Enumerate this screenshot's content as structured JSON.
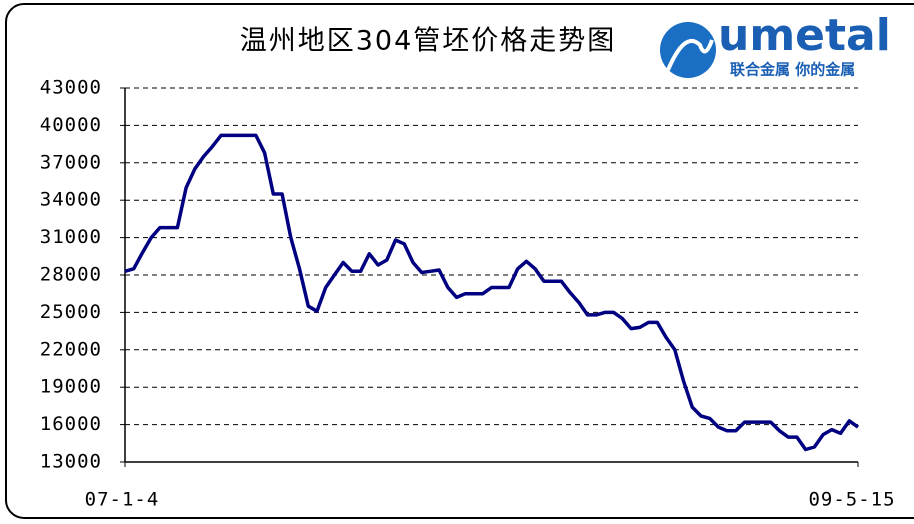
{
  "chart_data": {
    "type": "line",
    "title": "温州地区304管坯价格走势图",
    "logo": {
      "name": "umetal",
      "slogan": "联合金属 你的金属"
    },
    "categories": [
      "07-1-4",
      null,
      null,
      null,
      null,
      null,
      null,
      null,
      null,
      null,
      null,
      null,
      null,
      null,
      null,
      null,
      null,
      null,
      null,
      null,
      null,
      null,
      null,
      null,
      null,
      null,
      null,
      null,
      null,
      null,
      null,
      null,
      null,
      null,
      null,
      null,
      null,
      null,
      null,
      null,
      null,
      null,
      null,
      null,
      null,
      null,
      null,
      null,
      null,
      null,
      null,
      null,
      null,
      null,
      null,
      null,
      null,
      null,
      null,
      null,
      null,
      null,
      null,
      null,
      null,
      null,
      null,
      null,
      null,
      null,
      null,
      null,
      null,
      null,
      null,
      null,
      null,
      null,
      null,
      null,
      null,
      null,
      null,
      null,
      "09-5-15"
    ],
    "values": [
      28300,
      28500,
      29800,
      31000,
      31800,
      31800,
      31800,
      35000,
      36500,
      37500,
      38300,
      39200,
      39200,
      39200,
      39200,
      39200,
      37800,
      34500,
      34500,
      31000,
      28500,
      25500,
      25100,
      27000,
      28000,
      29000,
      28300,
      28300,
      29700,
      28800,
      29200,
      30800,
      30500,
      29000,
      28200,
      28300,
      28400,
      27000,
      26200,
      26500,
      26500,
      26500,
      27000,
      27000,
      27000,
      28500,
      29100,
      28500,
      27500,
      27500,
      27500,
      26600,
      25800,
      24800,
      24800,
      25000,
      25000,
      24500,
      23700,
      23800,
      24200,
      24200,
      23000,
      22000,
      19500,
      17400,
      16700,
      16500,
      15800,
      15500,
      15500,
      16200,
      16200,
      16200,
      16200,
      15500,
      15000,
      15000,
      14000,
      14200,
      15200,
      15600,
      15300,
      16300,
      15800
    ],
    "color": "#000080",
    "ylim": [
      13000,
      43000
    ],
    "yticks": [
      13000,
      16000,
      19000,
      22000,
      25000,
      28000,
      31000,
      34000,
      37000,
      40000,
      43000
    ],
    "grid": true
  }
}
